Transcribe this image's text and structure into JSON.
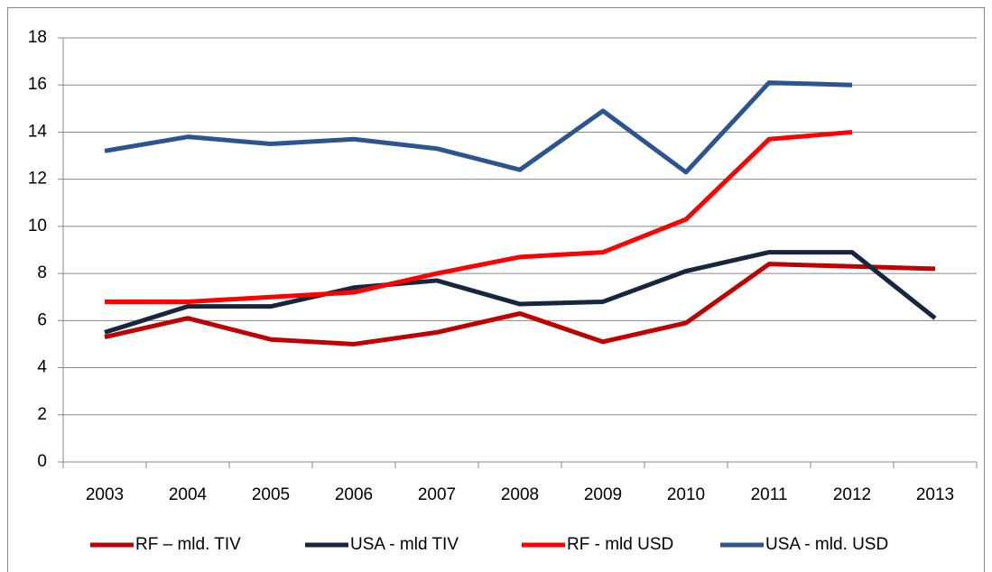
{
  "chart_data": {
    "type": "line",
    "categories": [
      "2003",
      "2004",
      "2005",
      "2006",
      "2007",
      "2008",
      "2009",
      "2010",
      "2011",
      "2012",
      "2013"
    ],
    "series": [
      {
        "name": "RF – mld. TIV",
        "color": "#c00000",
        "values": [
          5.3,
          6.1,
          5.2,
          5.0,
          5.5,
          6.3,
          5.1,
          5.9,
          8.4,
          8.3,
          8.2
        ]
      },
      {
        "name": "USA - mld TIV",
        "color": "#17263f",
        "values": [
          5.5,
          6.6,
          6.6,
          7.4,
          7.7,
          6.7,
          6.8,
          8.1,
          8.9,
          8.9,
          6.1
        ]
      },
      {
        "name": "RF - mld USD",
        "color": "#ff0000",
        "values": [
          6.8,
          6.8,
          7.0,
          7.2,
          8.0,
          8.7,
          8.9,
          10.3,
          13.7,
          14.0,
          null
        ]
      },
      {
        "name": "USA - mld. USD",
        "color": "#2c5490",
        "values": [
          13.2,
          13.8,
          13.5,
          13.7,
          13.3,
          12.4,
          14.9,
          12.3,
          16.1,
          16.0,
          null
        ]
      }
    ],
    "ylim": [
      0,
      18
    ],
    "yticks": [
      0,
      2,
      4,
      6,
      8,
      10,
      12,
      14,
      16,
      18
    ],
    "grid": true,
    "legend": "bottom"
  }
}
